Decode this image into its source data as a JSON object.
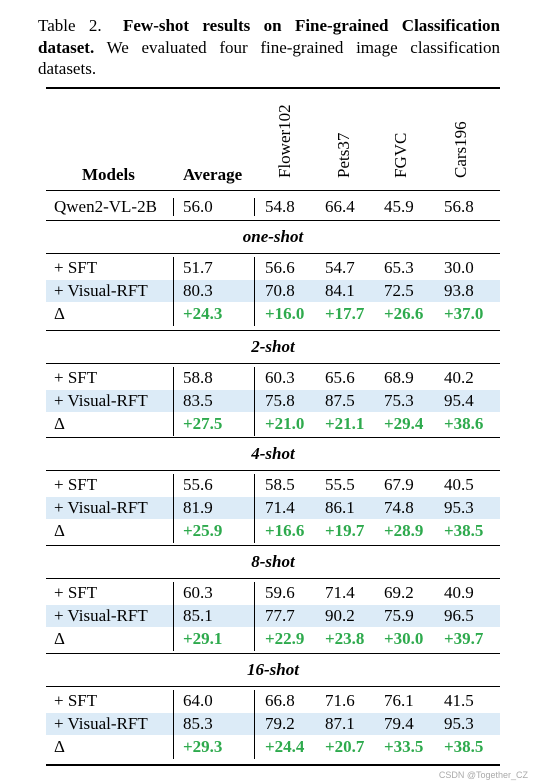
{
  "caption": {
    "label": "Table 2.",
    "bold_text": "Few-shot results on Fine-grained Classification dataset.",
    "rest": "We evaluated four fine-grained image classification datasets."
  },
  "header": {
    "models": "Models",
    "average": "Average",
    "datasets": [
      "Flower102",
      "Pets37",
      "FGVC",
      "Cars196"
    ]
  },
  "baseline": {
    "model": "Qwen2-VL-2B",
    "avg": "56.0",
    "values": [
      "54.8",
      "66.4",
      "45.9",
      "56.8"
    ]
  },
  "sections": [
    {
      "title": "one-shot",
      "rows": [
        {
          "model": "+ SFT",
          "avg": "51.7",
          "values": [
            "56.6",
            "54.7",
            "65.3",
            "30.0"
          ]
        },
        {
          "model": "+ Visual-RFT",
          "avg": "80.3",
          "values": [
            "70.8",
            "84.1",
            "72.5",
            "93.8"
          ]
        },
        {
          "model": "Δ",
          "avg": "+24.3",
          "values": [
            "+16.0",
            "+17.7",
            "+26.6",
            "+37.0"
          ]
        }
      ]
    },
    {
      "title": "2-shot",
      "rows": [
        {
          "model": "+ SFT",
          "avg": "58.8",
          "values": [
            "60.3",
            "65.6",
            "68.9",
            "40.2"
          ]
        },
        {
          "model": "+ Visual-RFT",
          "avg": "83.5",
          "values": [
            "75.8",
            "87.5",
            "75.3",
            "95.4"
          ]
        },
        {
          "model": "Δ",
          "avg": "+27.5",
          "values": [
            "+21.0",
            "+21.1",
            "+29.4",
            "+38.6"
          ]
        }
      ]
    },
    {
      "title": "4-shot",
      "rows": [
        {
          "model": "+ SFT",
          "avg": "55.6",
          "values": [
            "58.5",
            "55.5",
            "67.9",
            "40.5"
          ]
        },
        {
          "model": "+ Visual-RFT",
          "avg": "81.9",
          "values": [
            "71.4",
            "86.1",
            "74.8",
            "95.3"
          ]
        },
        {
          "model": "Δ",
          "avg": "+25.9",
          "values": [
            "+16.6",
            "+19.7",
            "+28.9",
            "+38.5"
          ]
        }
      ]
    },
    {
      "title": "8-shot",
      "rows": [
        {
          "model": "+ SFT",
          "avg": "60.3",
          "values": [
            "59.6",
            "71.4",
            "69.2",
            "40.9"
          ]
        },
        {
          "model": "+ Visual-RFT",
          "avg": "85.1",
          "values": [
            "77.7",
            "90.2",
            "75.9",
            "96.5"
          ]
        },
        {
          "model": "Δ",
          "avg": "+29.1",
          "values": [
            "+22.9",
            "+23.8",
            "+30.0",
            "+39.7"
          ]
        }
      ]
    },
    {
      "title": "16-shot",
      "rows": [
        {
          "model": "+ SFT",
          "avg": "64.0",
          "values": [
            "66.8",
            "71.6",
            "76.1",
            "41.5"
          ]
        },
        {
          "model": "+ Visual-RFT",
          "avg": "85.3",
          "values": [
            "79.2",
            "87.1",
            "79.4",
            "95.3"
          ]
        },
        {
          "model": "Δ",
          "avg": "+29.3",
          "values": [
            "+24.4",
            "+20.7",
            "+33.5",
            "+38.5"
          ]
        }
      ]
    }
  ],
  "watermark": "CSDN @Together_CZ",
  "colors": {
    "highlight_row": "#dcebf7",
    "delta_text": "#2eaa4d"
  }
}
